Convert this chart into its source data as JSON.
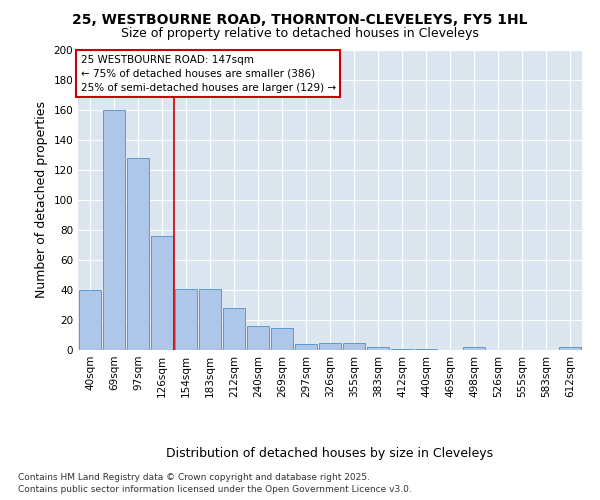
{
  "title_line1": "25, WESTBOURNE ROAD, THORNTON-CLEVELEYS, FY5 1HL",
  "title_line2": "Size of property relative to detached houses in Cleveleys",
  "xlabel": "Distribution of detached houses by size in Cleveleys",
  "ylabel": "Number of detached properties",
  "categories": [
    "40sqm",
    "69sqm",
    "97sqm",
    "126sqm",
    "154sqm",
    "183sqm",
    "212sqm",
    "240sqm",
    "269sqm",
    "297sqm",
    "326sqm",
    "355sqm",
    "383sqm",
    "412sqm",
    "440sqm",
    "469sqm",
    "498sqm",
    "526sqm",
    "555sqm",
    "583sqm",
    "612sqm"
  ],
  "values": [
    40,
    160,
    128,
    76,
    41,
    41,
    28,
    16,
    15,
    4,
    5,
    5,
    2,
    1,
    1,
    0,
    2,
    0,
    0,
    0,
    2
  ],
  "bar_color": "#aec6e8",
  "bar_edgecolor": "#5b9bd5",
  "vline_x": 3.5,
  "vline_color": "#cc0000",
  "annotation_text": "25 WESTBOURNE ROAD: 147sqm\n← 75% of detached houses are smaller (386)\n25% of semi-detached houses are larger (129) →",
  "annotation_box_color": "#ffffff",
  "annotation_box_edgecolor": "#cc0000",
  "ylim": [
    0,
    200
  ],
  "yticks": [
    0,
    20,
    40,
    60,
    80,
    100,
    120,
    140,
    160,
    180,
    200
  ],
  "fig_bg_color": "#ffffff",
  "plot_bg_color": "#dce6f1",
  "grid_color": "#ffffff",
  "footer_line1": "Contains HM Land Registry data © Crown copyright and database right 2025.",
  "footer_line2": "Contains public sector information licensed under the Open Government Licence v3.0.",
  "title_fontsize": 10,
  "subtitle_fontsize": 9,
  "axis_label_fontsize": 9,
  "tick_fontsize": 7.5,
  "annotation_fontsize": 7.5,
  "footer_fontsize": 6.5
}
